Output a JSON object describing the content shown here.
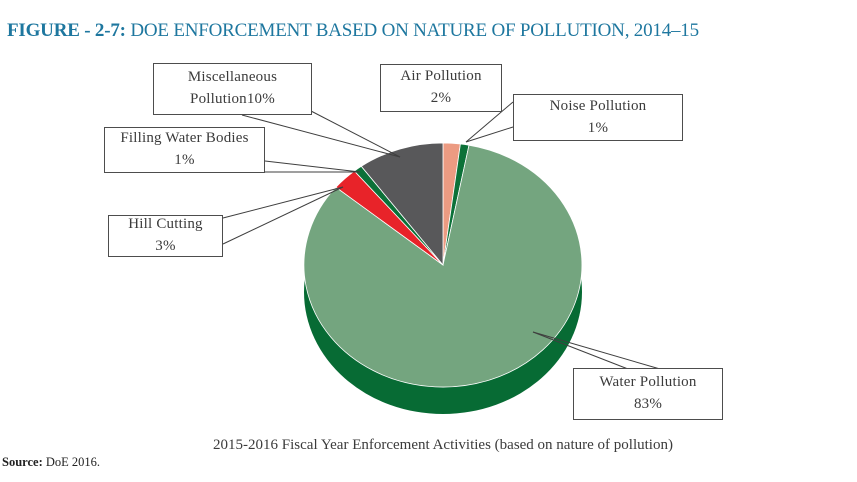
{
  "figure": {
    "title_prefix": "FIGURE - 2-7:",
    "title_rest": " DOE ENFORCEMENT BASED ON NATURE OF POLLUTION, 2014–15",
    "caption": "2015-2016 Fiscal Year Enforcement Activities (based on nature of pollution)",
    "source_label": "Source:",
    "source_text": " DoE 2016."
  },
  "callouts": {
    "misc": {
      "line1": "Miscellaneous",
      "line2": "Pollution10%"
    },
    "air": {
      "line1": "Air Pollution",
      "line2": "2%"
    },
    "noise": {
      "line1": "Noise Pollution",
      "line2": "1%"
    },
    "filling": {
      "line1": "Filling Water Bodies",
      "line2": "1%"
    },
    "hill": {
      "line1": "Hill Cutting",
      "line2": "3%"
    },
    "water": {
      "line1": "Water Pollution",
      "line2": "83%"
    }
  },
  "chart_data": {
    "type": "pie",
    "style": "3d-pie",
    "title": "FIGURE - 2-7: DOE ENFORCEMENT BASED ON NATURE OF POLLUTION, 2014–15",
    "caption": "2015-2016 Fiscal Year Enforcement Activities (based on nature of pollution)",
    "source": "DoE 2016.",
    "unit": "%",
    "start_angle_deg": 0,
    "direction": "clockwise",
    "slices": [
      {
        "label": "Air Pollution",
        "value": 2,
        "color": "#EC9B82"
      },
      {
        "label": "Noise Pollution",
        "value": 1,
        "color": "#0C7138"
      },
      {
        "label": "Water Pollution",
        "value": 83,
        "color": "#74A57F"
      },
      {
        "label": "Hill Cutting",
        "value": 3,
        "color": "#E82329"
      },
      {
        "label": "Filling Water Bodies",
        "value": 1,
        "color": "#0C7138"
      },
      {
        "label": "Miscellaneous Pollution",
        "value": 10,
        "color": "#58585A"
      }
    ],
    "rim_color": "#076B34",
    "colors": {
      "title": "#1E779F",
      "leader_line": "#3f3f3f",
      "callout_border": "#4d4d4d"
    }
  }
}
